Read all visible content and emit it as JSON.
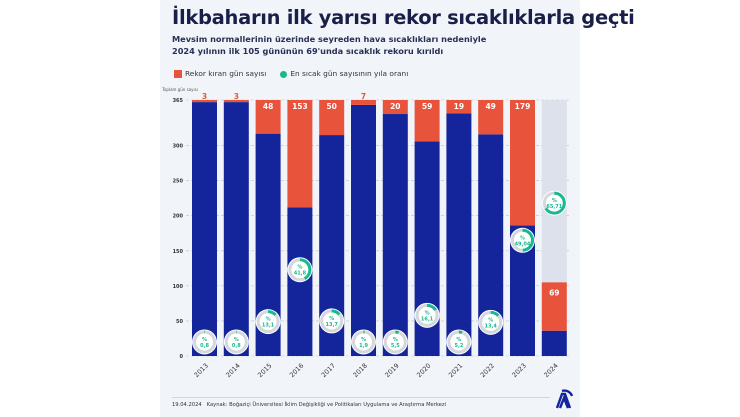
{
  "header": {
    "title": "İlkbaharın ilk yarısı rekor sıcaklıklarla geçti",
    "subtitle_line1": "Mevsim normallerinin üzerinde seyreden hava sıcaklıkları nedeniyle",
    "subtitle_line2": "2024 yılının ilk 105 gününün 69'unda sıcaklık rekoru kırıldı"
  },
  "legend": {
    "record": "Rekor kıran gün sayısı",
    "ratio": "En sıcak gün sayısının yıla oranı"
  },
  "footer": {
    "date": "19.04.2024",
    "source": "Kaynak: Boğaziçi Üniversitesi İklim Değişikliği ve Politikaları Uygulama ve Araştırma Merkezi"
  },
  "chart_data": {
    "type": "bar",
    "stacked": true,
    "ylabel": "Toplam gün sayısı",
    "ylim": [
      0,
      365
    ],
    "yticks": [
      "0",
      "50",
      "100",
      "150",
      "200",
      "250",
      "300",
      "365"
    ],
    "grid": true,
    "categories": [
      "2013",
      "2014",
      "2015",
      "2016",
      "2017",
      "2018",
      "2019",
      "2020",
      "2021",
      "2022",
      "2023",
      "2024"
    ],
    "total_days": [
      365,
      365,
      365,
      365,
      365,
      365,
      365,
      365,
      365,
      365,
      365,
      105
    ],
    "record_days": [
      3,
      3,
      48,
      153,
      50,
      7,
      20,
      59,
      19,
      49,
      179,
      69
    ],
    "ratio_percent": [
      "0,8",
      "0,8",
      "13,1",
      "41,8",
      "13,7",
      "1,9",
      "5,5",
      "16,1",
      "5,2",
      "13,4",
      "49,04",
      "65,71"
    ],
    "ratio_values": [
      0.8,
      0.8,
      13.1,
      41.8,
      13.7,
      1.9,
      5.5,
      16.1,
      5.2,
      13.4,
      49.04,
      65.71
    ],
    "percent_sign": "%",
    "colors": {
      "normal": "#14249a",
      "record": "#e8533b",
      "remaining": "#dde1ec",
      "ratio": "#17b98f"
    }
  }
}
